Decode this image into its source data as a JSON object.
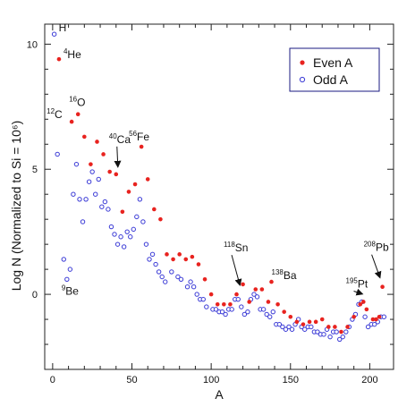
{
  "chart_data": {
    "type": "scatter",
    "title": "",
    "xlabel": "A",
    "ylabel": "Log N (Normalized to Si = 10⁶)",
    "xlim": [
      -5,
      215
    ],
    "ylim": [
      -3,
      10.8
    ],
    "x_ticks": [
      0,
      50,
      100,
      150,
      200
    ],
    "y_ticks": [
      0,
      5,
      10
    ],
    "grid": false,
    "legend_position": "top-right",
    "series": [
      {
        "name": "Even A",
        "color": "#e8231f",
        "marker": "filled-circle",
        "points": [
          [
            4,
            9.4
          ],
          [
            12,
            6.9
          ],
          [
            16,
            7.2
          ],
          [
            20,
            6.3
          ],
          [
            24,
            5.2
          ],
          [
            28,
            6.1
          ],
          [
            32,
            5.6
          ],
          [
            36,
            4.9
          ],
          [
            40,
            4.8
          ],
          [
            44,
            3.3
          ],
          [
            48,
            4.1
          ],
          [
            52,
            4.4
          ],
          [
            56,
            5.9
          ],
          [
            60,
            4.6
          ],
          [
            64,
            3.4
          ],
          [
            68,
            3.0
          ],
          [
            72,
            1.6
          ],
          [
            76,
            1.4
          ],
          [
            80,
            1.6
          ],
          [
            84,
            1.4
          ],
          [
            88,
            1.5
          ],
          [
            92,
            1.2
          ],
          [
            96,
            0.6
          ],
          [
            100,
            0.0
          ],
          [
            104,
            -0.4
          ],
          [
            108,
            -0.4
          ],
          [
            112,
            -0.4
          ],
          [
            116,
            0.0
          ],
          [
            120,
            0.4
          ],
          [
            124,
            -0.3
          ],
          [
            128,
            0.2
          ],
          [
            132,
            0.2
          ],
          [
            136,
            -0.3
          ],
          [
            138,
            0.5
          ],
          [
            142,
            -0.4
          ],
          [
            146,
            -0.7
          ],
          [
            150,
            -0.9
          ],
          [
            154,
            -1.1
          ],
          [
            158,
            -1.2
          ],
          [
            162,
            -1.1
          ],
          [
            166,
            -1.1
          ],
          [
            170,
            -1.0
          ],
          [
            174,
            -1.3
          ],
          [
            178,
            -1.3
          ],
          [
            182,
            -1.5
          ],
          [
            186,
            -1.3
          ],
          [
            190,
            -0.9
          ],
          [
            194,
            -0.4
          ],
          [
            196,
            -0.3
          ],
          [
            198,
            -0.6
          ],
          [
            202,
            -1.0
          ],
          [
            204,
            -1.0
          ],
          [
            206,
            -0.9
          ],
          [
            208,
            0.3
          ]
        ]
      },
      {
        "name": "Odd A",
        "color": "#3b3bd6",
        "marker": "open-circle",
        "points": [
          [
            1,
            10.4
          ],
          [
            3,
            5.6
          ],
          [
            7,
            1.4
          ],
          [
            9,
            0.6
          ],
          [
            11,
            1.0
          ],
          [
            13,
            4.0
          ],
          [
            15,
            5.2
          ],
          [
            17,
            3.8
          ],
          [
            19,
            2.9
          ],
          [
            21,
            3.8
          ],
          [
            23,
            4.5
          ],
          [
            25,
            4.9
          ],
          [
            27,
            4.0
          ],
          [
            29,
            4.6
          ],
          [
            31,
            3.5
          ],
          [
            33,
            3.7
          ],
          [
            35,
            3.4
          ],
          [
            37,
            2.7
          ],
          [
            39,
            2.4
          ],
          [
            41,
            2.0
          ],
          [
            43,
            2.3
          ],
          [
            45,
            1.9
          ],
          [
            47,
            2.5
          ],
          [
            49,
            2.3
          ],
          [
            51,
            2.6
          ],
          [
            53,
            3.1
          ],
          [
            55,
            3.8
          ],
          [
            57,
            2.9
          ],
          [
            59,
            2.0
          ],
          [
            61,
            1.4
          ],
          [
            63,
            1.6
          ],
          [
            65,
            1.2
          ],
          [
            67,
            0.9
          ],
          [
            69,
            0.7
          ],
          [
            71,
            0.5
          ],
          [
            75,
            0.9
          ],
          [
            79,
            0.7
          ],
          [
            81,
            0.6
          ],
          [
            85,
            0.3
          ],
          [
            87,
            0.5
          ],
          [
            89,
            0.3
          ],
          [
            91,
            0.0
          ],
          [
            93,
            -0.2
          ],
          [
            95,
            -0.2
          ],
          [
            97,
            -0.5
          ],
          [
            101,
            -0.6
          ],
          [
            103,
            -0.6
          ],
          [
            105,
            -0.7
          ],
          [
            107,
            -0.7
          ],
          [
            109,
            -0.8
          ],
          [
            111,
            -0.6
          ],
          [
            113,
            -0.6
          ],
          [
            115,
            -0.2
          ],
          [
            117,
            -0.2
          ],
          [
            119,
            -0.5
          ],
          [
            121,
            -0.8
          ],
          [
            123,
            -0.7
          ],
          [
            125,
            -0.2
          ],
          [
            127,
            0.0
          ],
          [
            129,
            -0.1
          ],
          [
            131,
            -0.6
          ],
          [
            133,
            -0.6
          ],
          [
            135,
            -0.8
          ],
          [
            137,
            -0.9
          ],
          [
            139,
            -0.7
          ],
          [
            141,
            -1.2
          ],
          [
            143,
            -1.2
          ],
          [
            145,
            -1.3
          ],
          [
            147,
            -1.4
          ],
          [
            149,
            -1.3
          ],
          [
            151,
            -1.4
          ],
          [
            153,
            -1.2
          ],
          [
            155,
            -1.0
          ],
          [
            157,
            -1.3
          ],
          [
            159,
            -1.4
          ],
          [
            161,
            -1.3
          ],
          [
            163,
            -1.3
          ],
          [
            165,
            -1.5
          ],
          [
            167,
            -1.5
          ],
          [
            169,
            -1.6
          ],
          [
            171,
            -1.6
          ],
          [
            173,
            -1.4
          ],
          [
            175,
            -1.7
          ],
          [
            177,
            -1.5
          ],
          [
            179,
            -1.5
          ],
          [
            181,
            -1.8
          ],
          [
            183,
            -1.7
          ],
          [
            185,
            -1.5
          ],
          [
            187,
            -1.3
          ],
          [
            189,
            -1.0
          ],
          [
            191,
            -0.8
          ],
          [
            193,
            -0.4
          ],
          [
            195,
            -0.3
          ],
          [
            197,
            -0.9
          ],
          [
            199,
            -1.3
          ],
          [
            201,
            -1.2
          ],
          [
            203,
            -1.2
          ],
          [
            205,
            -1.1
          ],
          [
            207,
            -0.9
          ],
          [
            209,
            -0.9
          ]
        ]
      }
    ],
    "annotations": [
      {
        "sup": "",
        "text": "H",
        "x": 1,
        "y": 10.4,
        "arrow": false
      },
      {
        "sup": "4",
        "text": "He",
        "x": 4,
        "y": 9.4,
        "arrow": false
      },
      {
        "sup": "12",
        "text": "C",
        "x": 12,
        "y": 6.9,
        "arrow": false
      },
      {
        "sup": "16",
        "text": "O",
        "x": 16,
        "y": 7.2,
        "arrow": false
      },
      {
        "sup": "9",
        "text": "Be",
        "x": 9,
        "y": 0.6,
        "arrow": false
      },
      {
        "sup": "40",
        "text": "Ca",
        "x": 40,
        "y": 4.8,
        "arrow": true
      },
      {
        "sup": "56",
        "text": "Fe",
        "x": 56,
        "y": 5.9,
        "arrow": false
      },
      {
        "sup": "118",
        "text": "Sn",
        "x": 118,
        "y": 0.0,
        "arrow": true
      },
      {
        "sup": "138",
        "text": "Ba",
        "x": 138,
        "y": 0.5,
        "arrow": false
      },
      {
        "sup": "195",
        "text": "Pt",
        "x": 195,
        "y": -0.3,
        "arrow": true
      },
      {
        "sup": "208",
        "text": "Pb",
        "x": 208,
        "y": 0.3,
        "arrow": true
      }
    ]
  }
}
